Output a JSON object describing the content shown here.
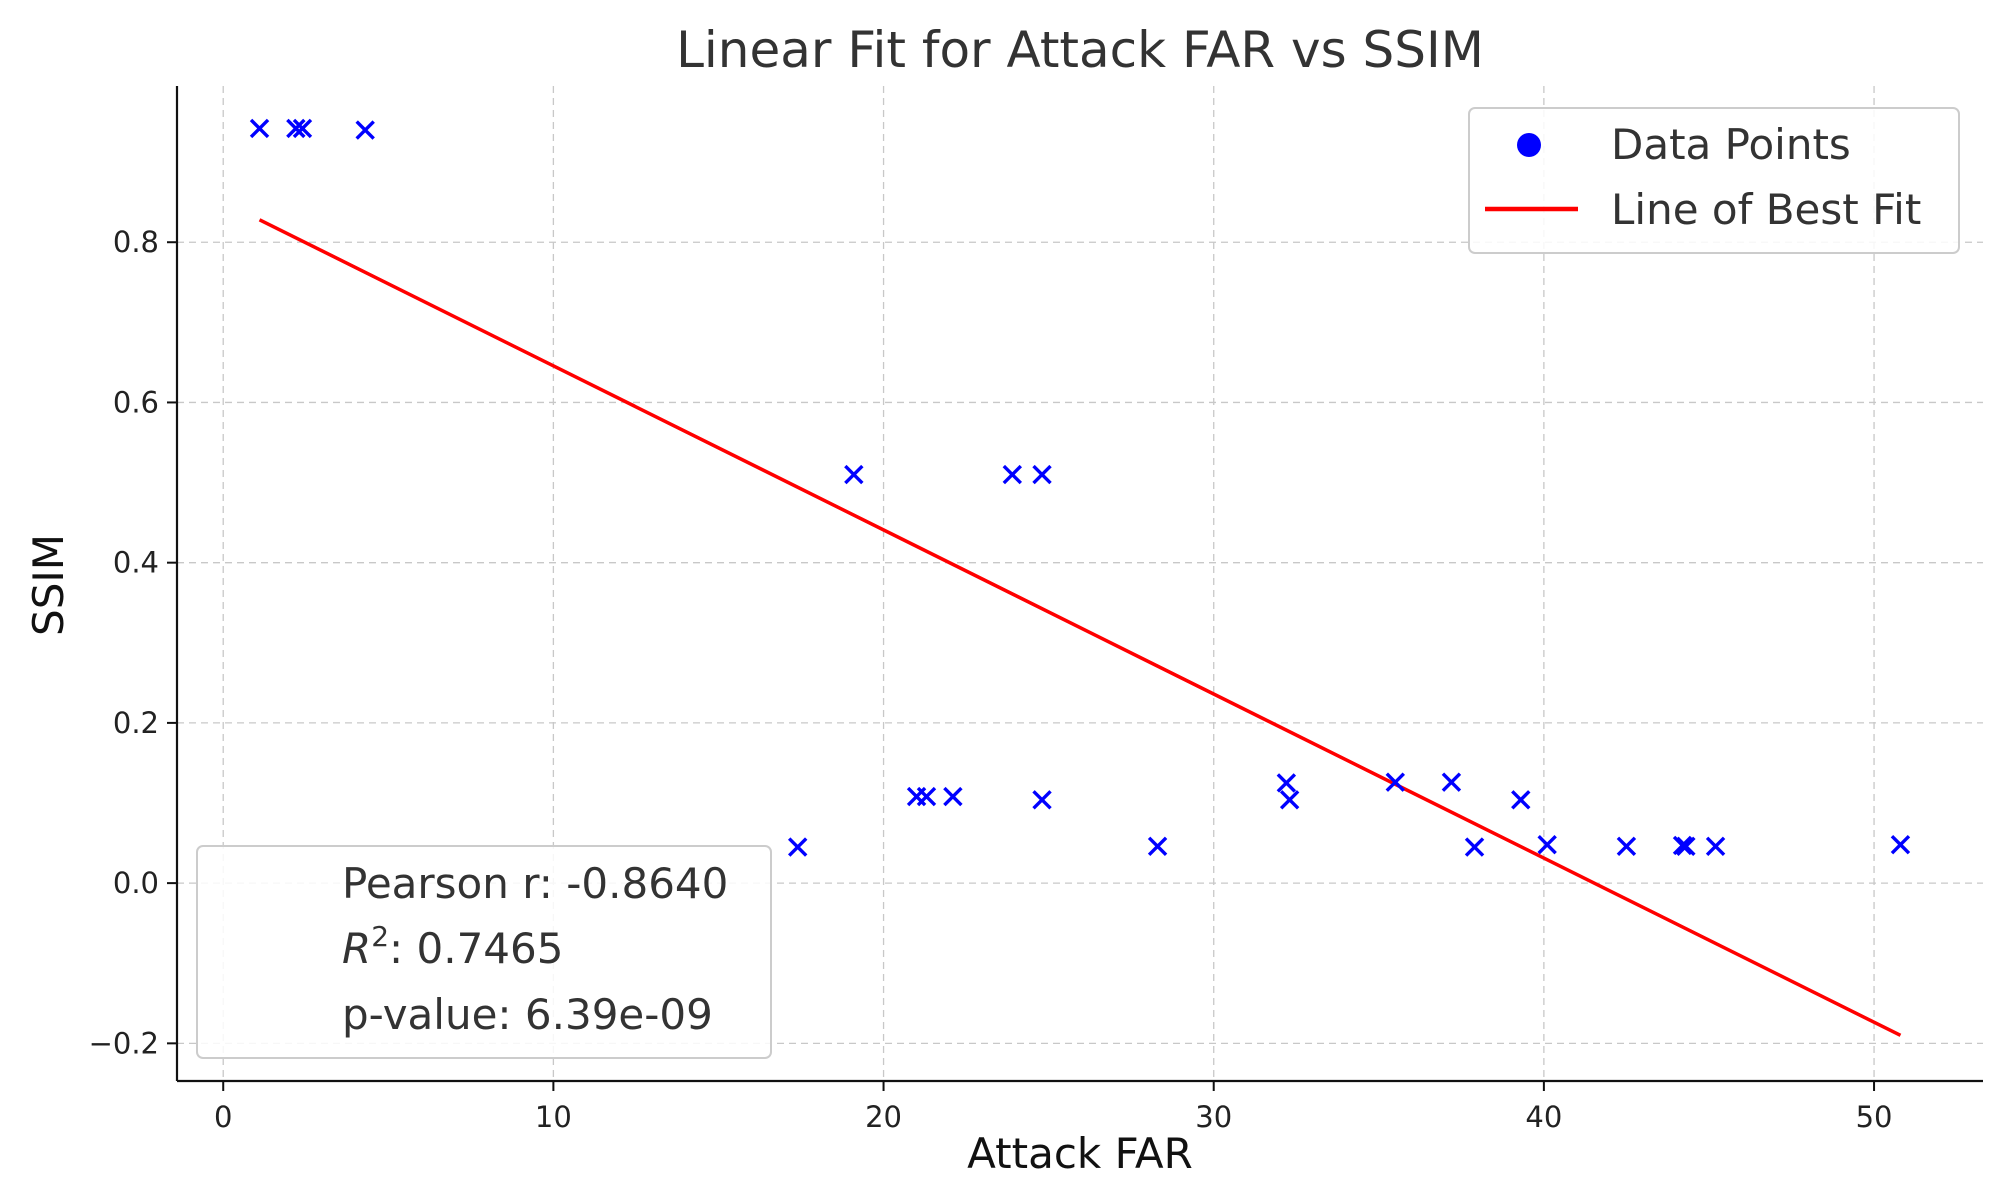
{
  "chart_data": {
    "type": "scatter",
    "title": "Linear Fit for Attack FAR vs SSIM",
    "xlabel": "Attack FAR",
    "ylabel": "SSIM",
    "xlim": [
      -1.4,
      53.3
    ],
    "ylim": [
      -0.247,
      0.995
    ],
    "xticks": [
      0,
      10,
      20,
      30,
      40,
      50
    ],
    "yticks": [
      -0.2,
      0.0,
      0.2,
      0.4,
      0.6,
      0.8
    ],
    "ytick_labels": [
      "−0.2",
      "0.0",
      "0.2",
      "0.4",
      "0.6",
      "0.8"
    ],
    "grid": true,
    "colors": {
      "points": "#0000ff",
      "fit_line": "#ff0000"
    },
    "series": [
      {
        "name": "Data Points",
        "marker": "x",
        "x": [
          1.1,
          2.2,
          2.4,
          4.3,
          17.4,
          19.1,
          21.0,
          21.3,
          22.1,
          23.9,
          24.8,
          24.8,
          28.3,
          32.2,
          32.3,
          35.5,
          37.2,
          37.9,
          39.3,
          40.1,
          42.5,
          44.2,
          44.3,
          45.2,
          50.8
        ],
        "y": [
          0.942,
          0.942,
          0.942,
          0.94,
          0.045,
          0.51,
          0.108,
          0.108,
          0.108,
          0.51,
          0.51,
          0.104,
          0.046,
          0.125,
          0.104,
          0.126,
          0.126,
          0.045,
          0.104,
          0.048,
          0.046,
          0.047,
          0.046,
          0.046,
          0.048
        ]
      },
      {
        "name": "Line of Best Fit",
        "type": "line",
        "x": [
          1.1,
          50.8
        ],
        "y": [
          0.828,
          -0.19
        ]
      }
    ],
    "legend": {
      "position": "upper right",
      "entries": [
        "Data Points",
        "Line of Best Fit"
      ]
    },
    "stats_box": {
      "position": "lower left",
      "pearson": "Pearson r: -0.8640",
      "r2_symbol": "R",
      "r2_superscript": "2",
      "r2_value": ": 0.7465",
      "p_value": "p-value: 6.39e-09"
    }
  }
}
